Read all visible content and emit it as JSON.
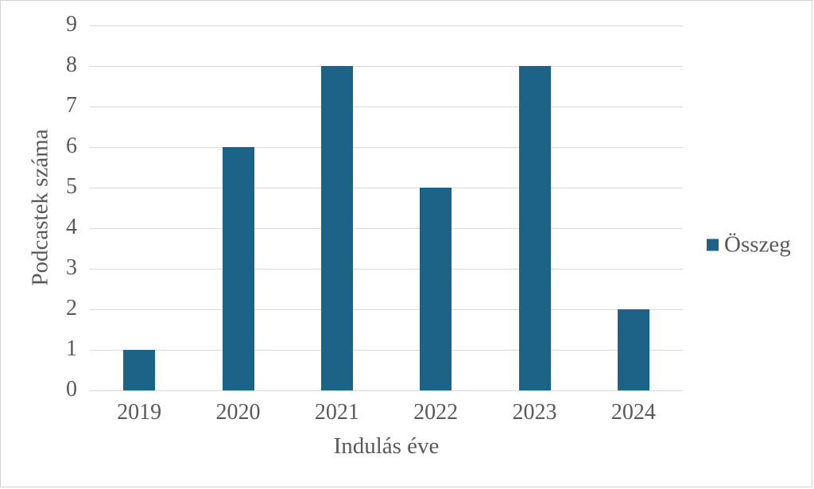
{
  "chart_data": {
    "type": "bar",
    "title": "",
    "categories": [
      "2019",
      "2020",
      "2021",
      "2022",
      "2023",
      "2024"
    ],
    "series": [
      {
        "name": "Összeg",
        "values": [
          1,
          6,
          8,
          5,
          8,
          2
        ]
      }
    ],
    "xlabel": "Indulás éve",
    "ylabel": "Podcastek száma",
    "ylim": [
      0,
      9
    ],
    "yticks": [
      0,
      1,
      2,
      3,
      4,
      5,
      6,
      7,
      8,
      9
    ],
    "grid": "horizontal",
    "legend_position": "middle-right",
    "colors": {
      "bar": "#1d6387",
      "grid": "#d9d9d9",
      "text": "#595959",
      "frame_border": "#d2d2d2",
      "background": "#ffffff"
    }
  },
  "legend": {
    "label": "Összeg"
  }
}
